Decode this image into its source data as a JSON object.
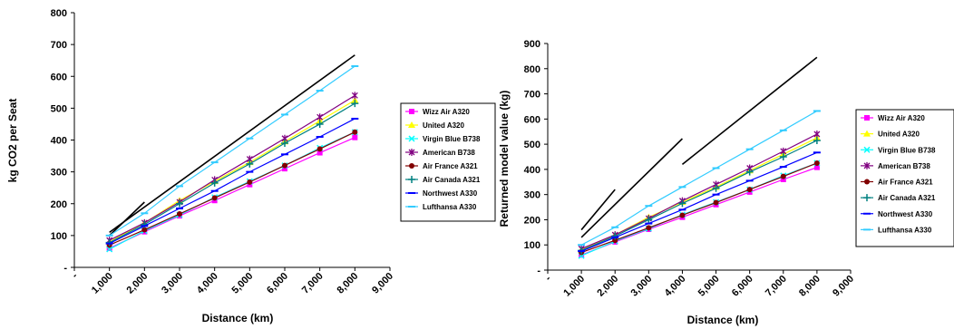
{
  "chart_data": [
    {
      "type": "line",
      "xlabel": "Distance (km)",
      "ylabel": "kg CO2 per Seat",
      "ylim": [
        0,
        800
      ],
      "xlim": [
        0,
        9000
      ],
      "x_tick_labels": [
        "-",
        "1,000",
        "2,000",
        "3,000",
        "4,000",
        "5,000",
        "6,000",
        "7,000",
        "8,000",
        "9,000"
      ],
      "y_tick_labels": [
        "-",
        "100",
        "200",
        "300",
        "400",
        "500",
        "600",
        "700",
        "800"
      ],
      "legend_position": "right",
      "x": [
        1000,
        2000,
        3000,
        4000,
        5000,
        6000,
        7000,
        8000
      ],
      "series": [
        {
          "name": "Wizz Air  A320",
          "color": "#ff00ff",
          "marker": "square",
          "values": [
            60,
            112,
            162,
            210,
            260,
            310,
            360,
            408
          ]
        },
        {
          "name": "United  A320",
          "color": "#ffff00",
          "marker": "triangle",
          "values": [
            80,
            140,
            210,
            270,
            330,
            395,
            460,
            525
          ]
        },
        {
          "name": "Virgin Blue  B738",
          "color": "#00ffff",
          "marker": "x",
          "values": [
            57,
            115,
            165,
            220,
            270,
            320,
            375,
            425
          ]
        },
        {
          "name": "American  B738",
          "color": "#800080",
          "marker": "star",
          "values": [
            85,
            140,
            205,
            275,
            340,
            405,
            472,
            540
          ]
        },
        {
          "name": "Air France  A321",
          "color": "#800000",
          "marker": "circle",
          "values": [
            70,
            118,
            168,
            218,
            268,
            320,
            372,
            425
          ]
        },
        {
          "name": "Air Canada  A321",
          "color": "#008080",
          "marker": "plus",
          "values": [
            78,
            135,
            200,
            265,
            325,
            390,
            450,
            515
          ]
        },
        {
          "name": "Northwest  A330",
          "color": "#0000ff",
          "marker": "dash",
          "values": [
            75,
            130,
            185,
            240,
            300,
            355,
            410,
            467
          ]
        },
        {
          "name": "Lufthansa  A330",
          "color": "#33ccff",
          "marker": "dash",
          "values": [
            100,
            170,
            255,
            330,
            405,
            480,
            555,
            632
          ]
        }
      ],
      "reference_lines": [
        {
          "color": "#000000",
          "points": [
            [
              1000,
              100
            ],
            [
              2000,
              205
            ]
          ]
        },
        {
          "color": "#000000",
          "points": [
            [
              1000,
              110
            ],
            [
              8000,
              667
            ]
          ]
        }
      ]
    },
    {
      "type": "line",
      "xlabel": "Distance (km)",
      "ylabel": "Returned model value (kg)",
      "ylim": [
        0,
        900
      ],
      "xlim": [
        0,
        9000
      ],
      "x_tick_labels": [
        "-",
        "1,000",
        "2,000",
        "3,000",
        "4,000",
        "5,000",
        "6,000",
        "7,000",
        "8,000",
        "9,000"
      ],
      "y_tick_labels": [
        "-",
        "100",
        "200",
        "300",
        "400",
        "500",
        "600",
        "700",
        "800",
        "900"
      ],
      "legend_position": "right",
      "x": [
        1000,
        2000,
        3000,
        4000,
        5000,
        6000,
        7000,
        8000
      ],
      "series": [
        {
          "name": "Wizz Air  A320",
          "color": "#ff00ff",
          "marker": "square",
          "values": [
            60,
            112,
            162,
            210,
            260,
            310,
            360,
            408
          ]
        },
        {
          "name": "United  A320",
          "color": "#ffff00",
          "marker": "triangle",
          "values": [
            80,
            140,
            210,
            270,
            330,
            395,
            460,
            525
          ]
        },
        {
          "name": "Virgin Blue  B738",
          "color": "#00ffff",
          "marker": "x",
          "values": [
            57,
            115,
            165,
            220,
            270,
            320,
            375,
            425
          ]
        },
        {
          "name": "American  B738",
          "color": "#800080",
          "marker": "star",
          "values": [
            85,
            140,
            205,
            275,
            340,
            405,
            472,
            540
          ]
        },
        {
          "name": "Air France  A321",
          "color": "#800000",
          "marker": "circle",
          "values": [
            70,
            118,
            168,
            218,
            268,
            320,
            372,
            425
          ]
        },
        {
          "name": "Air Canada  A321",
          "color": "#008080",
          "marker": "plus",
          "values": [
            78,
            135,
            200,
            265,
            325,
            390,
            450,
            515
          ]
        },
        {
          "name": "Northwest  A330",
          "color": "#0000ff",
          "marker": "dash",
          "values": [
            75,
            130,
            185,
            240,
            300,
            355,
            410,
            467
          ]
        },
        {
          "name": "Lufthansa  A330",
          "color": "#33ccff",
          "marker": "dash",
          "values": [
            100,
            170,
            255,
            330,
            405,
            480,
            555,
            632
          ]
        }
      ],
      "reference_lines": [
        {
          "color": "#000000",
          "points": [
            [
              1000,
              160
            ],
            [
              2000,
              320
            ]
          ]
        },
        {
          "color": "#000000",
          "points": [
            [
              1000,
              130
            ],
            [
              4000,
              522
            ]
          ]
        },
        {
          "color": "#000000",
          "points": [
            [
              4000,
              420
            ],
            [
              8000,
              845
            ]
          ]
        }
      ]
    }
  ]
}
